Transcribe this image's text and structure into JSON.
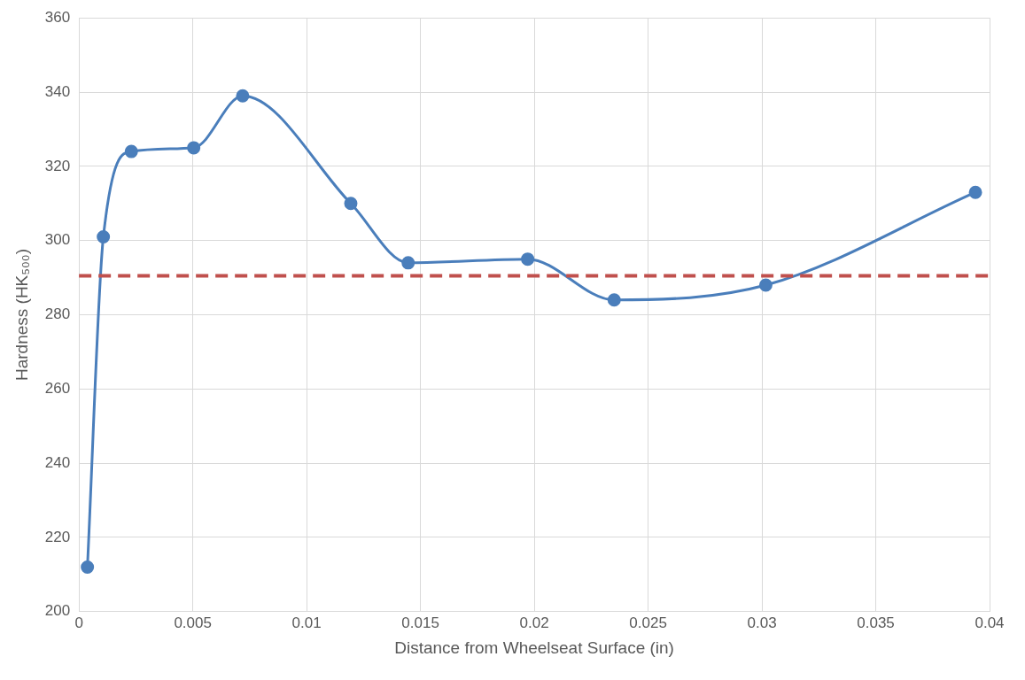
{
  "chart_data": {
    "type": "line",
    "xlabel": "Distance from Wheelseat Surface (in)",
    "ylabel": "Hardness (HK₅₀₀)",
    "series": [
      {
        "color": "#4a7ebb",
        "x": [
          0.00037,
          0.00107,
          0.0023,
          0.00504,
          0.00719,
          0.01194,
          0.01446,
          0.01971,
          0.02351,
          0.03017,
          0.03938
        ],
        "values": [
          212,
          301,
          324,
          325,
          339,
          310,
          294,
          295,
          284,
          288,
          313
        ]
      }
    ],
    "ref_lines": [
      {
        "axis": "y",
        "value": 290.5,
        "label": null,
        "color": "#c0504d",
        "line_style": "dashed"
      }
    ],
    "xlim": [
      0,
      0.04
    ],
    "xticks": [
      0,
      0.005,
      0.01,
      0.015,
      0.02,
      0.025,
      0.03,
      0.035,
      0.04
    ],
    "ylim": [
      200,
      360
    ],
    "yticks": [
      200,
      220,
      240,
      260,
      280,
      300,
      320,
      340,
      360
    ],
    "grid": true,
    "legend": false,
    "marker": "circle",
    "line_style": "solid"
  }
}
